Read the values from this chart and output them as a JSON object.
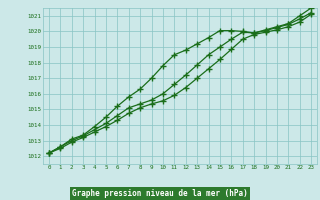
{
  "title": "Graphe pression niveau de la mer (hPa)",
  "hours": [
    0,
    1,
    2,
    3,
    4,
    5,
    6,
    7,
    8,
    9,
    10,
    11,
    12,
    13,
    14,
    15,
    16,
    17,
    18,
    19,
    20,
    21,
    22,
    23
  ],
  "line_upper": [
    1012.2,
    1012.6,
    1013.1,
    1013.35,
    1013.9,
    1014.5,
    1015.2,
    1015.8,
    1016.3,
    1017.0,
    1017.8,
    1018.5,
    1018.8,
    1019.2,
    1019.6,
    1020.05,
    1020.05,
    1020.0,
    1019.9,
    1020.1,
    1020.3,
    1020.5,
    1021.0,
    1021.5
  ],
  "line_mid": [
    1012.2,
    1012.6,
    1013.0,
    1013.3,
    1013.7,
    1014.1,
    1014.6,
    1015.1,
    1015.35,
    1015.6,
    1016.0,
    1016.6,
    1017.2,
    1017.85,
    1018.5,
    1019.0,
    1019.5,
    1019.95,
    1019.9,
    1020.05,
    1020.25,
    1020.45,
    1020.8,
    1021.2
  ],
  "line_lower": [
    1012.2,
    1012.5,
    1012.9,
    1013.2,
    1013.55,
    1013.9,
    1014.3,
    1014.75,
    1015.1,
    1015.35,
    1015.55,
    1015.9,
    1016.4,
    1017.0,
    1017.6,
    1018.2,
    1018.85,
    1019.5,
    1019.8,
    1019.95,
    1020.1,
    1020.3,
    1020.6,
    1021.1
  ],
  "ylim": [
    1011.5,
    1021.5
  ],
  "yticks": [
    1012,
    1013,
    1014,
    1015,
    1016,
    1017,
    1018,
    1019,
    1020,
    1021
  ],
  "line_color": "#1a6e1a",
  "bg_color": "#cce8e8",
  "grid_color": "#88c4c4",
  "text_color": "#1a6e1a",
  "title_bg": "#2d7a2d",
  "title_text_color": "#ffffff",
  "fig_width": 3.2,
  "fig_height": 2.0,
  "dpi": 100
}
